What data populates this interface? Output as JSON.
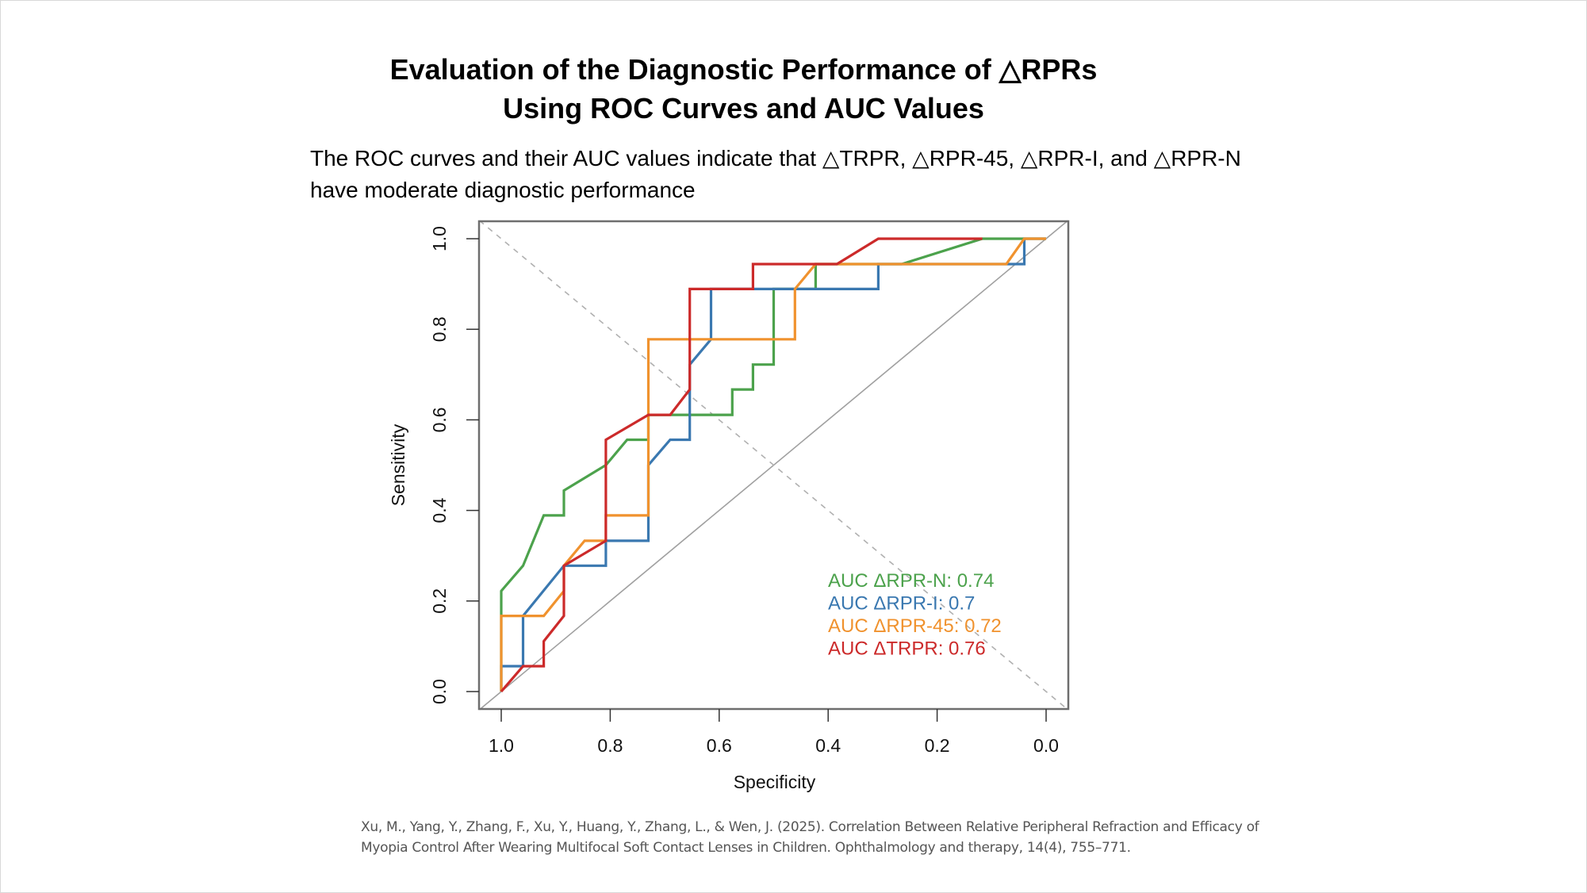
{
  "slide": {
    "title_line1": "Evaluation of the Diagnostic Performance of △RPRs",
    "title_line2": "Using ROC Curves and AUC Values",
    "subtitle_line1": "The ROC curves and their AUC values indicate that △TRPR, △RPR-45, △RPR-I, and △RPR-N",
    "subtitle_line2": "have moderate diagnostic performance",
    "citation_line1": "Xu, M., Yang, Y., Zhang, F., Xu, Y., Huang, Y., Zhang, L., & Wen, J. (2025). Correlation Between Relative Peripheral Refraction and Efficacy of",
    "citation_line2": "Myopia Control After Wearing Multifocal Soft Contact Lenses in Children. Ophthalmology and therapy, 14(4), 755–771."
  },
  "chart_data": {
    "type": "line",
    "title": "",
    "xlabel": "Specificity",
    "ylabel": "Sensitivity",
    "xlim": [
      1.0,
      0.0
    ],
    "ylim": [
      0.0,
      1.0
    ],
    "x_reversed": true,
    "xticks": [
      "1.0",
      "0.8",
      "0.6",
      "0.4",
      "0.2",
      "0.0"
    ],
    "xtick_values": [
      1.0,
      0.8,
      0.6,
      0.4,
      0.2,
      0.0
    ],
    "yticks": [
      "0.0",
      "0.2",
      "0.4",
      "0.6",
      "0.8",
      "1.0"
    ],
    "ytick_values": [
      0.0,
      0.2,
      0.4,
      0.6,
      0.8,
      1.0
    ],
    "grid": false,
    "legend_position": "bottom-right",
    "reference_lines": [
      {
        "name": "chance-diagonal",
        "style": "solid",
        "color": "#a0a0a0",
        "points": [
          [
            1.0,
            0.0
          ],
          [
            0.0,
            1.0
          ]
        ]
      },
      {
        "name": "anti-diagonal",
        "style": "dashed",
        "color": "#b0b0b0",
        "points": [
          [
            1.0,
            1.0
          ],
          [
            0.0,
            0.0
          ]
        ]
      }
    ],
    "series": [
      {
        "name": "ΔRPR-N",
        "legend": "AUC ΔRPR-N: 0.74",
        "auc": 0.74,
        "color": "#4ca24c",
        "points": [
          [
            1,
            0
          ],
          [
            1,
            0.222
          ],
          [
            0.96,
            0.278
          ],
          [
            0.922,
            0.389
          ],
          [
            0.885,
            0.389
          ],
          [
            0.885,
            0.444
          ],
          [
            0.808,
            0.5
          ],
          [
            0.769,
            0.556
          ],
          [
            0.73,
            0.556
          ],
          [
            0.73,
            0.611
          ],
          [
            0.576,
            0.611
          ],
          [
            0.576,
            0.667
          ],
          [
            0.538,
            0.667
          ],
          [
            0.538,
            0.722
          ],
          [
            0.5,
            0.722
          ],
          [
            0.5,
            0.889
          ],
          [
            0.423,
            0.889
          ],
          [
            0.423,
            0.944
          ],
          [
            0.265,
            0.944
          ],
          [
            0.117,
            1.0
          ],
          [
            0,
            1.0
          ]
        ]
      },
      {
        "name": "ΔRPR-I",
        "legend": "AUC ΔRPR-I: 0.7",
        "auc": 0.7,
        "color": "#3a78b0",
        "points": [
          [
            1,
            0
          ],
          [
            1,
            0.056
          ],
          [
            0.96,
            0.056
          ],
          [
            0.96,
            0.167
          ],
          [
            0.885,
            0.278
          ],
          [
            0.808,
            0.278
          ],
          [
            0.808,
            0.333
          ],
          [
            0.73,
            0.333
          ],
          [
            0.73,
            0.5
          ],
          [
            0.69,
            0.556
          ],
          [
            0.654,
            0.556
          ],
          [
            0.654,
            0.722
          ],
          [
            0.615,
            0.778
          ],
          [
            0.615,
            0.889
          ],
          [
            0.308,
            0.889
          ],
          [
            0.308,
            0.944
          ],
          [
            0.04,
            0.944
          ],
          [
            0.04,
            1.0
          ],
          [
            0,
            1.0
          ]
        ]
      },
      {
        "name": "ΔRPR-45",
        "legend": "AUC ΔRPR-45: 0.72",
        "auc": 0.72,
        "color": "#f0922e",
        "points": [
          [
            1,
            0
          ],
          [
            1,
            0.167
          ],
          [
            0.922,
            0.167
          ],
          [
            0.885,
            0.222
          ],
          [
            0.885,
            0.278
          ],
          [
            0.847,
            0.333
          ],
          [
            0.808,
            0.333
          ],
          [
            0.808,
            0.389
          ],
          [
            0.73,
            0.389
          ],
          [
            0.73,
            0.778
          ],
          [
            0.461,
            0.778
          ],
          [
            0.461,
            0.889
          ],
          [
            0.423,
            0.944
          ],
          [
            0.073,
            0.944
          ],
          [
            0.04,
            1.0
          ],
          [
            0,
            1.0
          ]
        ]
      },
      {
        "name": "ΔTRPR",
        "legend": "AUC ΔTRPR: 0.76",
        "auc": 0.76,
        "color": "#cc2a2a",
        "points": [
          [
            1,
            0
          ],
          [
            0.96,
            0.056
          ],
          [
            0.922,
            0.056
          ],
          [
            0.922,
            0.111
          ],
          [
            0.885,
            0.167
          ],
          [
            0.885,
            0.278
          ],
          [
            0.808,
            0.333
          ],
          [
            0.808,
            0.556
          ],
          [
            0.73,
            0.611
          ],
          [
            0.69,
            0.611
          ],
          [
            0.654,
            0.667
          ],
          [
            0.654,
            0.889
          ],
          [
            0.538,
            0.889
          ],
          [
            0.538,
            0.944
          ],
          [
            0.384,
            0.944
          ],
          [
            0.308,
            1.0
          ],
          [
            0.117,
            1.0
          ]
        ]
      }
    ]
  }
}
